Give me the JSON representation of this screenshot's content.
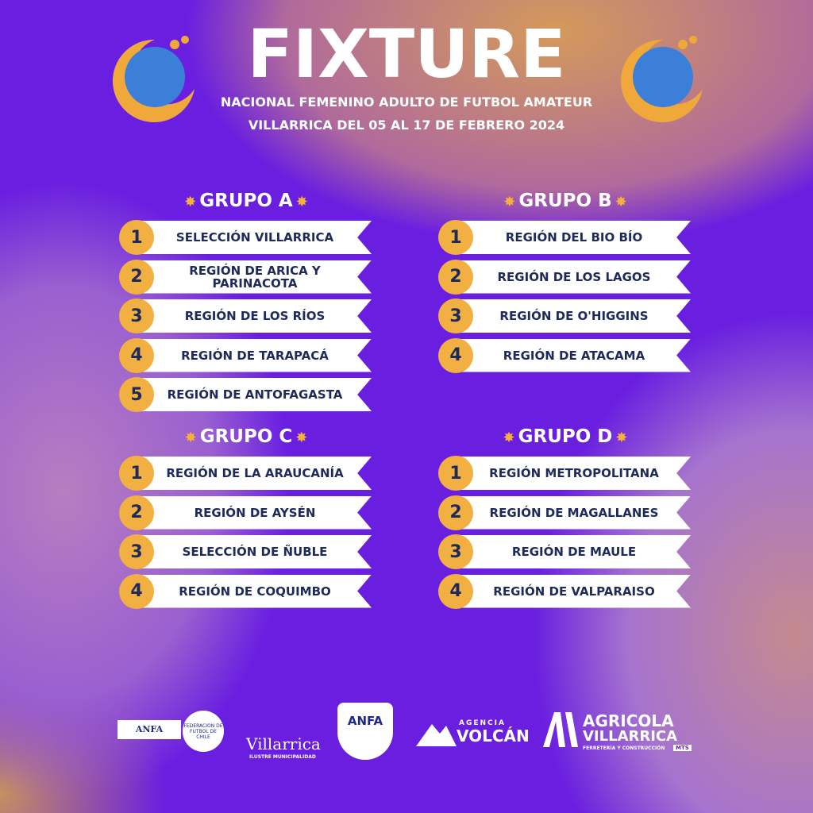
{
  "header": {
    "title": "FIXTURE",
    "subtitle": "NACIONAL FEMENINO ADULTO DE FUTBOL AMATEUR",
    "dates": "VILLARRICA DEL 05 AL 17 DE FEBRERO 2024"
  },
  "groups": [
    {
      "name": "GRUPO A",
      "teams": [
        {
          "number": 1,
          "name": "SELECCIÓN VILLARRICA"
        },
        {
          "number": 2,
          "name": "REGIÓN DE ARICA Y PARINACOTA"
        },
        {
          "number": 3,
          "name": "REGIÓN DE LOS RÍOS"
        },
        {
          "number": 4,
          "name": "REGIÓN DE TARAPACÁ"
        },
        {
          "number": 5,
          "name": "REGIÓN DE ANTOFAGASTA"
        }
      ]
    },
    {
      "name": "GRUPO B",
      "teams": [
        {
          "number": 1,
          "name": "REGIÓN DEL BIO BÍO"
        },
        {
          "number": 2,
          "name": "REGIÓN DE LOS LAGOS"
        },
        {
          "number": 3,
          "name": "REGIÓN DE O'HIGGINS"
        },
        {
          "number": 4,
          "name": "REGIÓN DE ATACAMA"
        }
      ]
    },
    {
      "name": "GRUPO C",
      "teams": [
        {
          "number": 1,
          "name": "REGIÓN DE LA ARAUCANÍA"
        },
        {
          "number": 2,
          "name": "REGIÓN DE AYSÉN"
        },
        {
          "number": 3,
          "name": "SELECCIÓN DE ÑUBLE"
        },
        {
          "number": 4,
          "name": "REGIÓN DE COQUIMBO"
        }
      ]
    },
    {
      "name": "GRUPO D",
      "teams": [
        {
          "number": 1,
          "name": "REGIÓN METROPOLITANA"
        },
        {
          "number": 2,
          "name": "REGIÓN DE MAGALLANES"
        },
        {
          "number": 3,
          "name": "REGIÓN DE MAULE"
        },
        {
          "number": 4,
          "name": "REGIÓN DE VALPARAISO"
        }
      ]
    }
  ],
  "sponsors": {
    "anfa_left": "ANFA",
    "federation": "FEDERACION DE FUTBOL DE CHILE",
    "villarrica": "Villarrica",
    "municipality": "ILUSTRE MUNICIPALIDAD",
    "anfa": "ANFA",
    "agency_label": "AGENCIA",
    "agency_name": "VOLCÁN",
    "agricola_1": "AGRICOLA",
    "agricola_2": "VILLARRICA",
    "agricola_3": "FERRETERÍA Y CONSTRUCCIÓN",
    "agricola_4": "MTS"
  }
}
